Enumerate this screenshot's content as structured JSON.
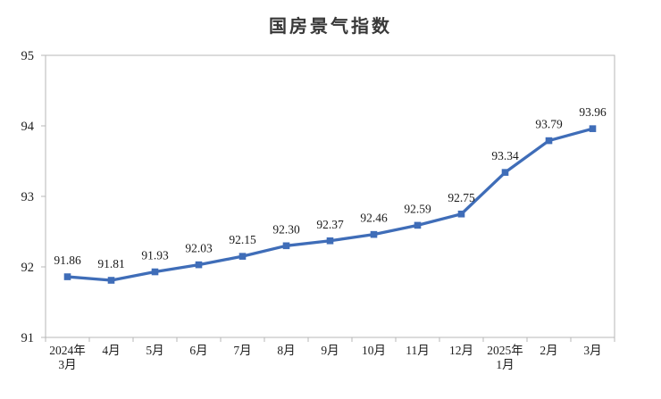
{
  "chart_data": {
    "type": "line",
    "title": "国房景气指数",
    "categories": [
      "2024年\n3月",
      "4月",
      "5月",
      "6月",
      "7月",
      "8月",
      "9月",
      "10月",
      "11月",
      "12月",
      "2025年\n1月",
      "2月",
      "3月"
    ],
    "values": [
      91.86,
      91.81,
      91.93,
      92.03,
      92.15,
      92.3,
      92.37,
      92.46,
      92.59,
      92.75,
      93.34,
      93.79,
      93.96
    ],
    "data_labels": [
      "91.86",
      "91.81",
      "91.93",
      "92.03",
      "92.15",
      "92.30",
      "92.37",
      "92.46",
      "92.59",
      "92.75",
      "93.34",
      "93.79",
      "93.96"
    ],
    "xlabel": "",
    "ylabel": "",
    "ylim": [
      91,
      95
    ],
    "yticks": [
      "91",
      "92",
      "93",
      "94",
      "95"
    ],
    "grid": false,
    "legend": "none",
    "marker": "square",
    "line_color": "#3f6db8",
    "axis_color": "#b7b7b7",
    "text_color": "#1f1f1f",
    "background": "#ffffff"
  }
}
